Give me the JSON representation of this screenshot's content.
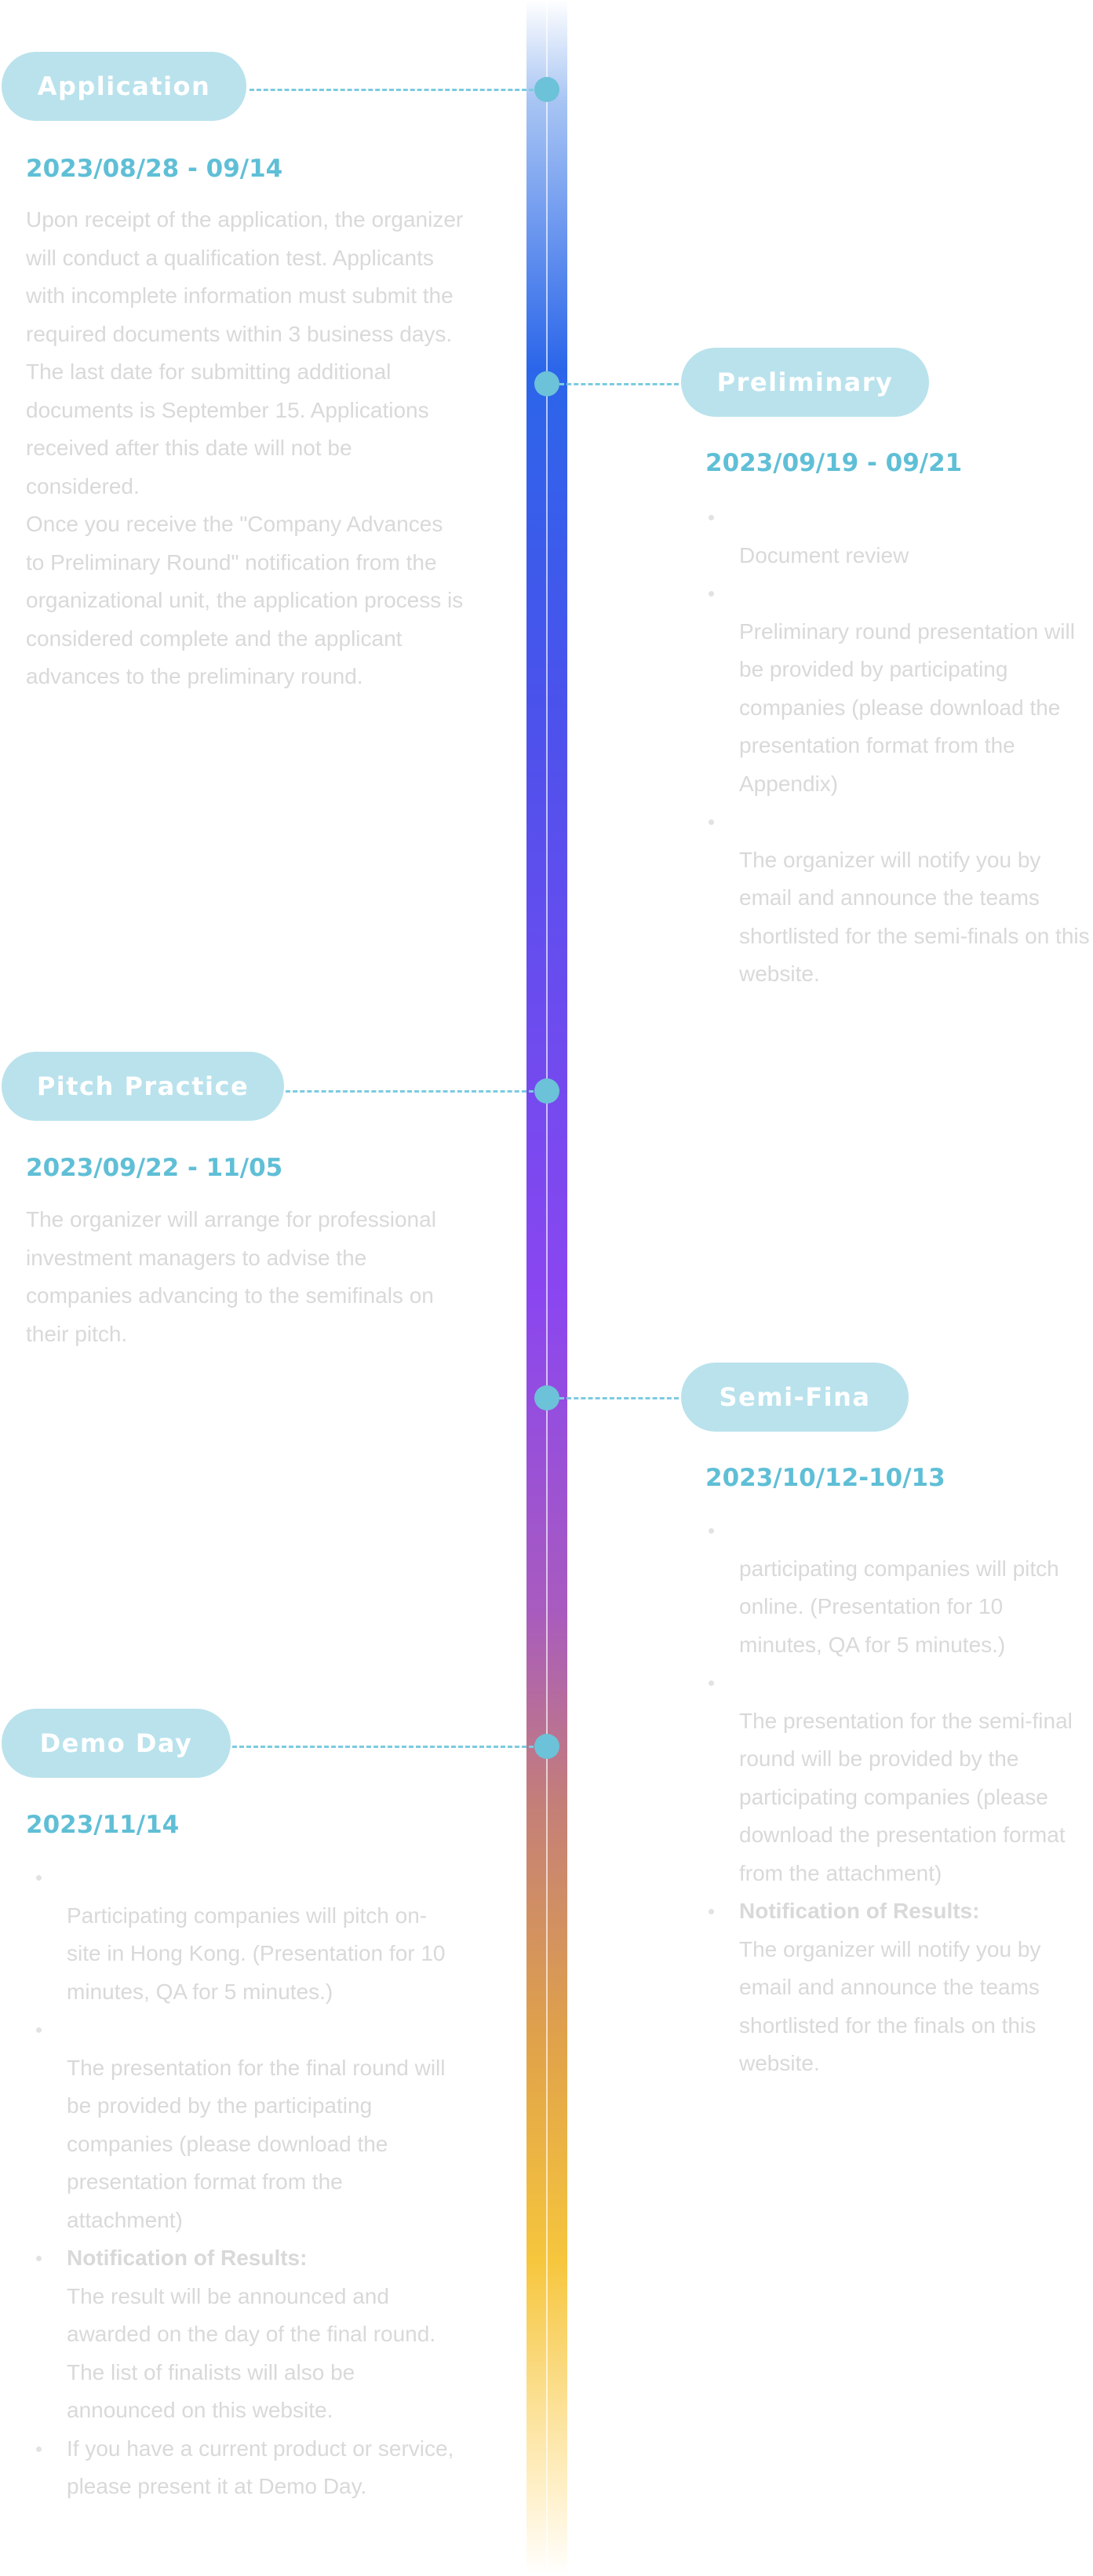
{
  "colors": {
    "accent": "#5fbfd6",
    "pill_background": "#b9e2ec",
    "node": "#6cc2d8",
    "muted_text": "#d9d9d9"
  },
  "stages": [
    {
      "title": "Application",
      "date": "2023/08/28 - 09/14",
      "paragraphs": [
        "Upon receipt of the application, the organizer will conduct a qualification test. Applicants with incomplete information must submit the required documents within 3 business days. The last date for submitting additional documents is September 15. Applications received after this date will not be considered.",
        "Once you receive the \"Company Advances to Preliminary Round\" notification from the organizational unit, the application process is considered complete and the applicant advances to the preliminary round."
      ]
    },
    {
      "title": "Preliminary",
      "date": "2023/09/19 - 09/21",
      "items": [
        {
          "label": "",
          "text": "Document review"
        },
        {
          "label": "",
          "text": "Preliminary round presentation will be provided by participating companies (please download the presentation format from the Appendix)"
        },
        {
          "label": "",
          "text": "The organizer will notify you by email and announce the teams shortlisted for the semi-finals on this website."
        }
      ]
    },
    {
      "title": "Pitch Practice",
      "date": "2023/09/22 - 11/05",
      "paragraphs": [
        "The organizer will arrange for professional investment managers to advise the companies advancing to the semifinals on their pitch."
      ]
    },
    {
      "title": "Semi-Fina",
      "date": "2023/10/12-10/13",
      "items": [
        {
          "label": "",
          "text": "participating companies will pitch online. (Presentation for 10 minutes, QA for 5 minutes.)"
        },
        {
          "label": "",
          "text": "The presentation for the semi-final round will be provided by the participating companies (please download the presentation format from the attachment)"
        },
        {
          "label": "Notification of  Results:",
          "text": "The organizer will notify you by email and announce the teams shortlisted for the finals on this website."
        }
      ]
    },
    {
      "title": "Demo Day",
      "date": "2023/11/14",
      "items": [
        {
          "label": "",
          "text": "Participating companies will pitch on-site in Hong Kong. (Presentation for 10 minutes, QA for 5 minutes.)"
        },
        {
          "label": "",
          "text": "The presentation for the final round will be provided by the participating companies (please download the presentation format from the attachment)"
        },
        {
          "label": "Notification of  Results:",
          "text": "The result will be announced and awarded on the day of the final round. The list of finalists will also be announced on this website."
        },
        {
          "label": "",
          "text": "If you have a current product or service, please present it at Demo Day."
        }
      ]
    }
  ]
}
